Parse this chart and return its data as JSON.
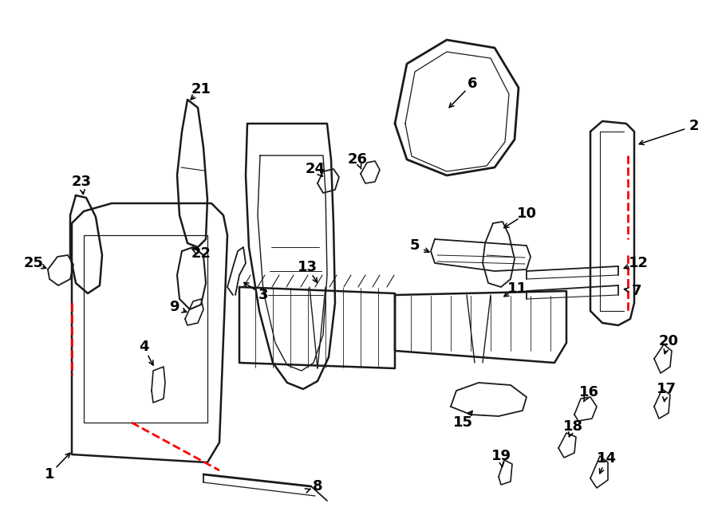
{
  "background_color": "#ffffff",
  "line_color": "#1a1a1a",
  "red_dash_color": "#ff0000",
  "label_color": "#000000",
  "label_fontsize": 13,
  "fig_width": 9.0,
  "fig_height": 6.61
}
